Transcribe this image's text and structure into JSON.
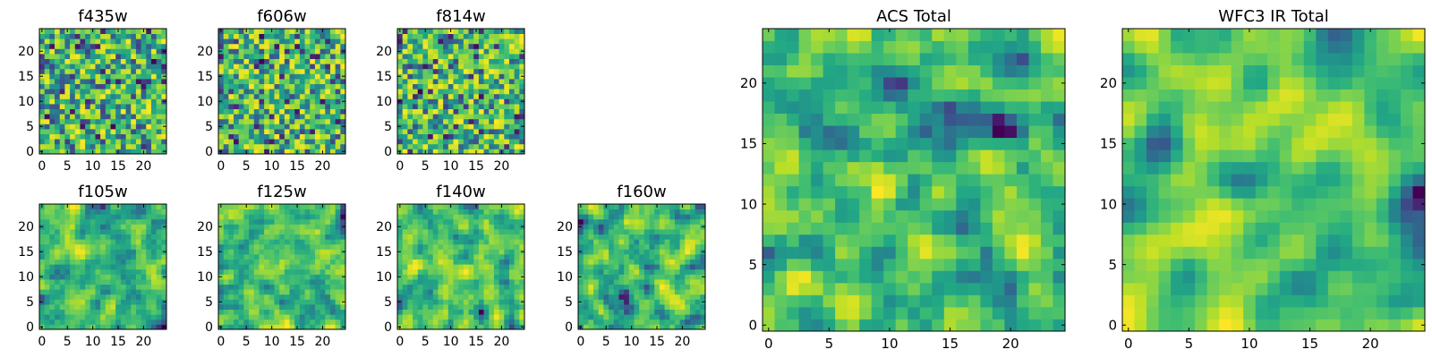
{
  "chart_data": [
    {
      "type": "heatmap",
      "title": "f435w",
      "xlabel": "",
      "ylabel": "",
      "x_ticks": [
        0,
        5,
        10,
        15,
        20
      ],
      "y_ticks": [
        0,
        5,
        10,
        15,
        20
      ],
      "grid_size": 25,
      "seed": 11,
      "smooth": 0,
      "colormap": "viridis"
    },
    {
      "type": "heatmap",
      "title": "f606w",
      "xlabel": "",
      "ylabel": "",
      "x_ticks": [
        0,
        5,
        10,
        15,
        20
      ],
      "y_ticks": [
        0,
        5,
        10,
        15,
        20
      ],
      "grid_size": 25,
      "seed": 23,
      "smooth": 0,
      "colormap": "viridis"
    },
    {
      "type": "heatmap",
      "title": "f814w",
      "xlabel": "",
      "ylabel": "",
      "x_ticks": [
        0,
        5,
        10,
        15,
        20
      ],
      "y_ticks": [
        0,
        5,
        10,
        15,
        20
      ],
      "grid_size": 25,
      "seed": 37,
      "smooth": 0,
      "colormap": "viridis"
    },
    {
      "type": "heatmap",
      "title": "f105w",
      "xlabel": "",
      "ylabel": "",
      "x_ticks": [
        0,
        5,
        10,
        15,
        20
      ],
      "y_ticks": [
        0,
        5,
        10,
        15,
        20
      ],
      "grid_size": 25,
      "seed": 41,
      "smooth": 1,
      "colormap": "viridis"
    },
    {
      "type": "heatmap",
      "title": "f125w",
      "xlabel": "",
      "ylabel": "",
      "x_ticks": [
        0,
        5,
        10,
        15,
        20
      ],
      "y_ticks": [
        0,
        5,
        10,
        15,
        20
      ],
      "grid_size": 25,
      "seed": 53,
      "smooth": 1,
      "colormap": "viridis"
    },
    {
      "type": "heatmap",
      "title": "f140w",
      "xlabel": "",
      "ylabel": "",
      "x_ticks": [
        0,
        5,
        10,
        15,
        20
      ],
      "y_ticks": [
        0,
        5,
        10,
        15,
        20
      ],
      "grid_size": 25,
      "seed": 67,
      "smooth": 1,
      "colormap": "viridis"
    },
    {
      "type": "heatmap",
      "title": "f160w",
      "xlabel": "",
      "ylabel": "",
      "x_ticks": [
        0,
        5,
        10,
        15,
        20
      ],
      "y_ticks": [
        0,
        5,
        10,
        15,
        20
      ],
      "grid_size": 25,
      "seed": 79,
      "smooth": 1,
      "colormap": "viridis"
    },
    {
      "type": "heatmap",
      "title": "ACS Total",
      "xlabel": "",
      "ylabel": "",
      "x_ticks": [
        0,
        5,
        10,
        15,
        20
      ],
      "y_ticks": [
        0,
        5,
        10,
        15,
        20
      ],
      "grid_size": 25,
      "seed": 97,
      "smooth": 1,
      "colormap": "viridis"
    },
    {
      "type": "heatmap",
      "title": "WFC3 IR Total",
      "xlabel": "",
      "ylabel": "",
      "x_ticks": [
        0,
        5,
        10,
        15,
        20
      ],
      "y_ticks": [
        0,
        5,
        10,
        15,
        20
      ],
      "grid_size": 25,
      "seed": 113,
      "smooth": 2,
      "colormap": "viridis"
    }
  ]
}
